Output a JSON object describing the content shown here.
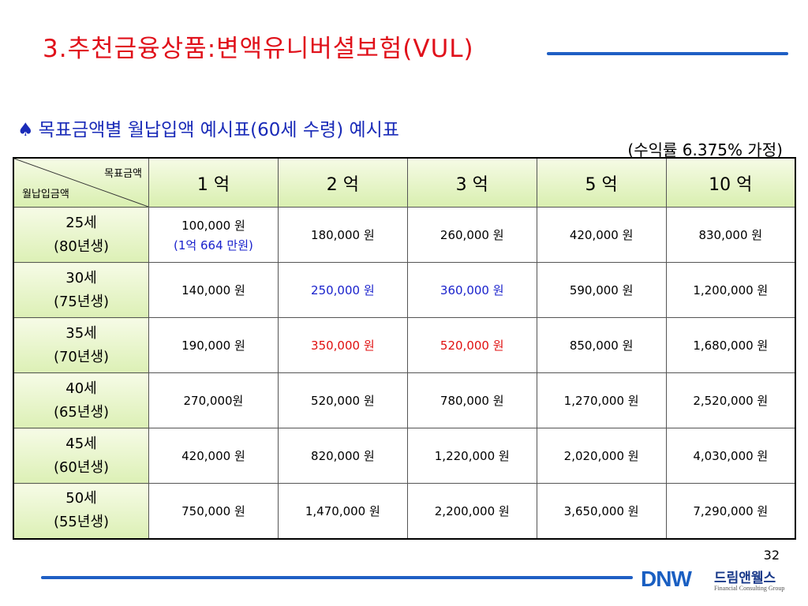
{
  "slide": {
    "title": "3.추천금융상품:변액유니버셜보험(VUL)",
    "subtitle_icon": "spade-icon",
    "subtitle": "목표금액별 월납입액 예시표(60세 수령) 예시표",
    "note": "(수익률 6.375% 가정)",
    "page_number": "32"
  },
  "table": {
    "corner_top": "목표금액",
    "corner_bottom": "월납입금액",
    "columns": [
      "1 억",
      "2 억",
      "3 억",
      "5 억",
      "10 억"
    ],
    "rows": [
      {
        "age": "25세",
        "birth": "(80년생)",
        "cells": [
          {
            "text": "100,000 원",
            "sub": "(1억 664 만원)",
            "color": "default",
            "sub_color": "blue"
          },
          {
            "text": "180,000 원",
            "color": "default"
          },
          {
            "text": "260,000 원",
            "color": "default"
          },
          {
            "text": "420,000 원",
            "color": "default"
          },
          {
            "text": "830,000 원",
            "color": "default"
          }
        ]
      },
      {
        "age": "30세",
        "birth": "(75년생)",
        "cells": [
          {
            "text": "140,000 원",
            "color": "default"
          },
          {
            "text": "250,000 원",
            "color": "blue"
          },
          {
            "text": "360,000 원",
            "color": "blue"
          },
          {
            "text": "590,000 원",
            "color": "default"
          },
          {
            "text": "1,200,000 원",
            "color": "default"
          }
        ]
      },
      {
        "age": "35세",
        "birth": "(70년생)",
        "cells": [
          {
            "text": "190,000 원",
            "color": "default"
          },
          {
            "text": "350,000 원",
            "color": "red"
          },
          {
            "text": "520,000 원",
            "color": "red"
          },
          {
            "text": "850,000 원",
            "color": "default"
          },
          {
            "text": "1,680,000 원",
            "color": "default"
          }
        ]
      },
      {
        "age": "40세",
        "birth": "(65년생)",
        "cells": [
          {
            "text": "270,000원",
            "color": "default"
          },
          {
            "text": "520,000 원",
            "color": "default"
          },
          {
            "text": "780,000 원",
            "color": "default"
          },
          {
            "text": "1,270,000 원",
            "color": "default"
          },
          {
            "text": "2,520,000 원",
            "color": "default"
          }
        ]
      },
      {
        "age": "45세",
        "birth": "(60년생)",
        "cells": [
          {
            "text": "420,000 원",
            "color": "default"
          },
          {
            "text": "820,000 원",
            "color": "default"
          },
          {
            "text": "1,220,000 원",
            "color": "default"
          },
          {
            "text": "2,020,000 원",
            "color": "default"
          },
          {
            "text": "4,030,000 원",
            "color": "default"
          }
        ]
      },
      {
        "age": "50세",
        "birth": "(55년생)",
        "cells": [
          {
            "text": "750,000 원",
            "color": "default"
          },
          {
            "text": "1,470,000 원",
            "color": "default"
          },
          {
            "text": "2,200,000 원",
            "color": "default"
          },
          {
            "text": "3,650,000 원",
            "color": "default"
          },
          {
            "text": "7,290,000 원",
            "color": "default"
          }
        ]
      }
    ]
  },
  "logo": {
    "mark": "DNW",
    "name": "드림앤웰스",
    "tagline": "Financial Consulting Group"
  },
  "colors": {
    "title": "#e0101a",
    "subtitle": "#1a2bb8",
    "rule": "#1f5fc4",
    "header_bg": "#d9efb0",
    "blue": "#1a22cc",
    "red": "#e01010"
  }
}
